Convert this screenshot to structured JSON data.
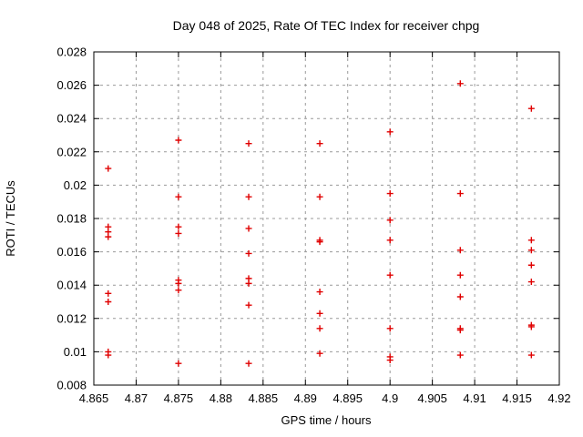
{
  "chart_data": {
    "type": "scatter",
    "title": "Day 048 of 2025, Rate Of TEC Index for receiver chpg",
    "xlabel": "GPS time / hours",
    "ylabel": "ROTI / TECUs",
    "xlim": [
      4.865,
      4.92
    ],
    "ylim": [
      0.008,
      0.028
    ],
    "x_ticks": [
      4.865,
      4.87,
      4.875,
      4.88,
      4.885,
      4.89,
      4.895,
      4.9,
      4.905,
      4.91,
      4.915,
      4.92
    ],
    "x_tick_labels": [
      "4.865",
      "4.87",
      "4.875",
      "4.88",
      "4.885",
      "4.89",
      "4.895",
      "4.9",
      "4.905",
      "4.91",
      "4.915",
      "4.92"
    ],
    "y_ticks": [
      0.008,
      0.01,
      0.012,
      0.014,
      0.016,
      0.018,
      0.02,
      0.022,
      0.024,
      0.026,
      0.028
    ],
    "y_tick_labels": [
      "0.008",
      "0.01",
      "0.012",
      "0.014",
      "0.016",
      "0.018",
      "0.02",
      "0.022",
      "0.024",
      "0.026",
      "0.028"
    ],
    "grid": true,
    "legend": "none",
    "marker": "plus",
    "marker_color": "#e00000",
    "points": [
      [
        4.8667,
        0.021
      ],
      [
        4.8667,
        0.0175
      ],
      [
        4.8667,
        0.0172
      ],
      [
        4.8667,
        0.0169
      ],
      [
        4.8667,
        0.0135
      ],
      [
        4.8667,
        0.013
      ],
      [
        4.8667,
        0.01
      ],
      [
        4.8667,
        0.0098
      ],
      [
        4.875,
        0.0227
      ],
      [
        4.875,
        0.0193
      ],
      [
        4.875,
        0.0175
      ],
      [
        4.875,
        0.0171
      ],
      [
        4.875,
        0.0143
      ],
      [
        4.875,
        0.0141
      ],
      [
        4.875,
        0.0137
      ],
      [
        4.875,
        0.0093
      ],
      [
        4.8833,
        0.0225
      ],
      [
        4.8833,
        0.0193
      ],
      [
        4.8833,
        0.0174
      ],
      [
        4.8833,
        0.0159
      ],
      [
        4.8833,
        0.0144
      ],
      [
        4.8833,
        0.0141
      ],
      [
        4.8833,
        0.0128
      ],
      [
        4.8833,
        0.0093
      ],
      [
        4.8917,
        0.0225
      ],
      [
        4.8917,
        0.0193
      ],
      [
        4.8917,
        0.0167
      ],
      [
        4.8917,
        0.0166
      ],
      [
        4.8917,
        0.0136
      ],
      [
        4.8917,
        0.0123
      ],
      [
        4.8917,
        0.0114
      ],
      [
        4.8917,
        0.0099
      ],
      [
        4.9,
        0.0232
      ],
      [
        4.9,
        0.0195
      ],
      [
        4.9,
        0.0179
      ],
      [
        4.9,
        0.0167
      ],
      [
        4.9,
        0.0146
      ],
      [
        4.9,
        0.0114
      ],
      [
        4.9,
        0.0097
      ],
      [
        4.9,
        0.0095
      ],
      [
        4.9083,
        0.0261
      ],
      [
        4.9083,
        0.0195
      ],
      [
        4.9083,
        0.0161
      ],
      [
        4.9083,
        0.0146
      ],
      [
        4.9083,
        0.0133
      ],
      [
        4.9083,
        0.0114
      ],
      [
        4.9083,
        0.0113
      ],
      [
        4.9083,
        0.0098
      ],
      [
        4.9167,
        0.0246
      ],
      [
        4.9167,
        0.0167
      ],
      [
        4.9167,
        0.0161
      ],
      [
        4.9167,
        0.0152
      ],
      [
        4.9167,
        0.0142
      ],
      [
        4.9167,
        0.0116
      ],
      [
        4.9167,
        0.0115
      ],
      [
        4.9167,
        0.0098
      ]
    ]
  }
}
